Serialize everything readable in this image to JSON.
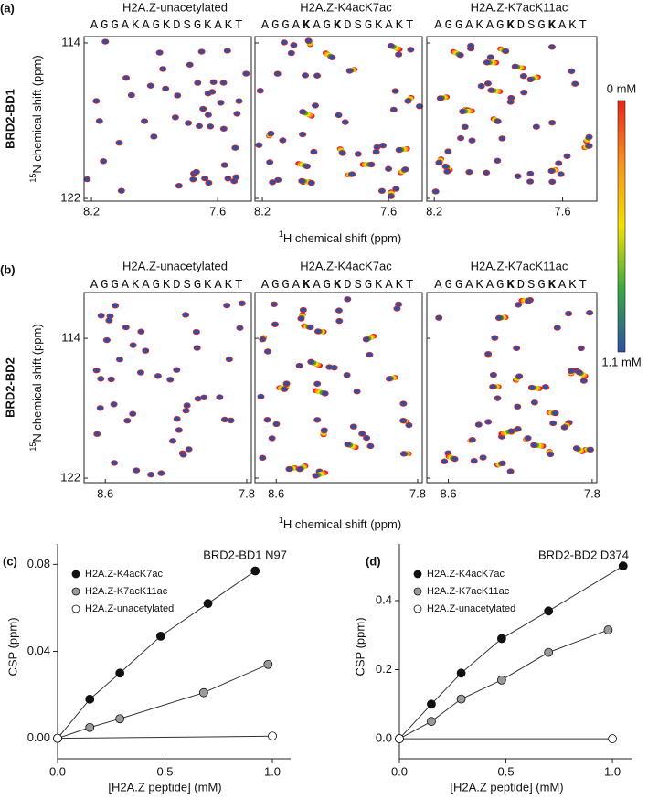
{
  "spectra_rows": [
    {
      "label": "(a)",
      "protein": "BRD2-BD1",
      "y_label_sup": "15",
      "y_label": "N chemical shift (ppm)",
      "x_label_sup": "1",
      "x_label": "H chemical shift (ppm)",
      "xlim": [
        8.235,
        7.44
      ],
      "xticks": [
        8.2,
        7.6
      ],
      "ylim": [
        113.67,
        122.14
      ],
      "yticks": [
        114,
        122
      ],
      "panels": [
        {
          "title": "H2A.Z-unacetylated",
          "sequence": [
            {
              "text": "AGGAKAGKDSGKAKT"
            }
          ]
        },
        {
          "title": "H2A.Z-K4acK7ac",
          "sequence": [
            {
              "text": "AGGA"
            },
            {
              "text": "K",
              "bold": true
            },
            {
              "text": "AG"
            },
            {
              "text": "K",
              "bold": true
            },
            {
              "text": "DSGKAKT"
            }
          ]
        },
        {
          "title": "H2A.Z-K7acK11ac",
          "sequence": [
            {
              "text": "AGGAKAG"
            },
            {
              "text": "K",
              "bold": true
            },
            {
              "text": "DSG"
            },
            {
              "text": "K",
              "bold": true
            },
            {
              "text": "AKT"
            }
          ]
        }
      ]
    },
    {
      "label": "(b)",
      "protein": "BRD2-BD2",
      "y_label_sup": "15",
      "y_label": "N chemical shift (ppm)",
      "x_label_sup": "1",
      "x_label": "H chemical shift (ppm)",
      "xlim": [
        8.72,
        7.774
      ],
      "xticks": [
        8.6,
        7.8
      ],
      "ylim": [
        111.38,
        122.26
      ],
      "yticks": [
        114,
        122
      ],
      "panels": [
        {
          "title": "H2A.Z-unacetylated",
          "sequence": [
            {
              "text": "AGGAKAGKDSGKAKT"
            }
          ]
        },
        {
          "title": "H2A.Z-K4acK7ac",
          "sequence": [
            {
              "text": "AGGA"
            },
            {
              "text": "K",
              "bold": true
            },
            {
              "text": "AG"
            },
            {
              "text": "K",
              "bold": true
            },
            {
              "text": "DSGKAKT"
            }
          ]
        },
        {
          "title": "H2A.Z-K7acK11ac",
          "sequence": [
            {
              "text": "AGGAKAG"
            },
            {
              "text": "K",
              "bold": true
            },
            {
              "text": "DSG"
            },
            {
              "text": "K",
              "bold": true
            },
            {
              "text": "AKT"
            }
          ]
        }
      ]
    }
  ],
  "colorbar": {
    "top_label": "0 mM",
    "bottom_label": "1.1 mM",
    "colors": [
      "#e8241b",
      "#f7941d",
      "#f2e100",
      "#39a845",
      "#2f4fa2"
    ]
  },
  "chart_data": [
    {
      "type": "line",
      "label": "(c)",
      "title": "BRD2-BD1 N97",
      "x_label": "[H2A.Z peptide] (mM)",
      "y_label": "CSP (ppm)",
      "xlim": [
        0,
        1.085
      ],
      "xticks": [
        {
          "value": 0,
          "label": "0.0"
        },
        0.5,
        {
          "value": 1,
          "label": "1.0"
        }
      ],
      "ylim": [
        -0.0094,
        0.0894
      ],
      "yticks": [
        {
          "value": 0,
          "label": "0.00"
        },
        0.04,
        0.08
      ],
      "series": [
        {
          "name": "H2A.Z-K4acK7ac",
          "color": "#111111",
          "x": [
            0,
            0.15,
            0.29,
            0.48,
            0.7,
            0.92
          ],
          "values": [
            0,
            0.018,
            0.03,
            0.047,
            0.062,
            0.077
          ]
        },
        {
          "name": "H2A.Z-K7acK11ac",
          "color": "#9a9a9a",
          "x": [
            0,
            0.15,
            0.29,
            0.68,
            0.98
          ],
          "values": [
            0,
            0.005,
            0.009,
            0.021,
            0.034
          ]
        },
        {
          "name": "H2A.Z-unacetylated",
          "color": "#ffffff",
          "x": [
            0,
            1
          ],
          "values": [
            0,
            0.001
          ]
        }
      ]
    },
    {
      "type": "line",
      "label": "(d)",
      "title": "BRD2-BD2 D374",
      "x_label": "[H2A.Z peptide] (mM)",
      "y_label": "CSP (ppm)",
      "xlim": [
        0,
        1.094
      ],
      "xticks": [
        {
          "value": 0,
          "label": "0.0"
        },
        0.5,
        {
          "value": 1,
          "label": "1.0"
        }
      ],
      "ylim": [
        -0.058,
        0.564
      ],
      "yticks": [
        {
          "value": 0,
          "label": "0.0"
        },
        0.2,
        0.4
      ],
      "series": [
        {
          "name": "H2A.Z-K4acK7ac",
          "color": "#111111",
          "x": [
            0,
            0.15,
            0.29,
            0.48,
            0.7,
            1.05
          ],
          "values": [
            0,
            0.1,
            0.19,
            0.29,
            0.37,
            0.5
          ]
        },
        {
          "name": "H2A.Z-K7acK11ac",
          "color": "#9a9a9a",
          "x": [
            0,
            0.15,
            0.29,
            0.48,
            0.7,
            0.98
          ],
          "values": [
            0,
            0.05,
            0.115,
            0.17,
            0.25,
            0.315
          ]
        },
        {
          "name": "H2A.Z-unacetylated",
          "color": "#ffffff",
          "x": [
            0,
            1
          ],
          "values": [
            0,
            0
          ]
        }
      ]
    }
  ]
}
